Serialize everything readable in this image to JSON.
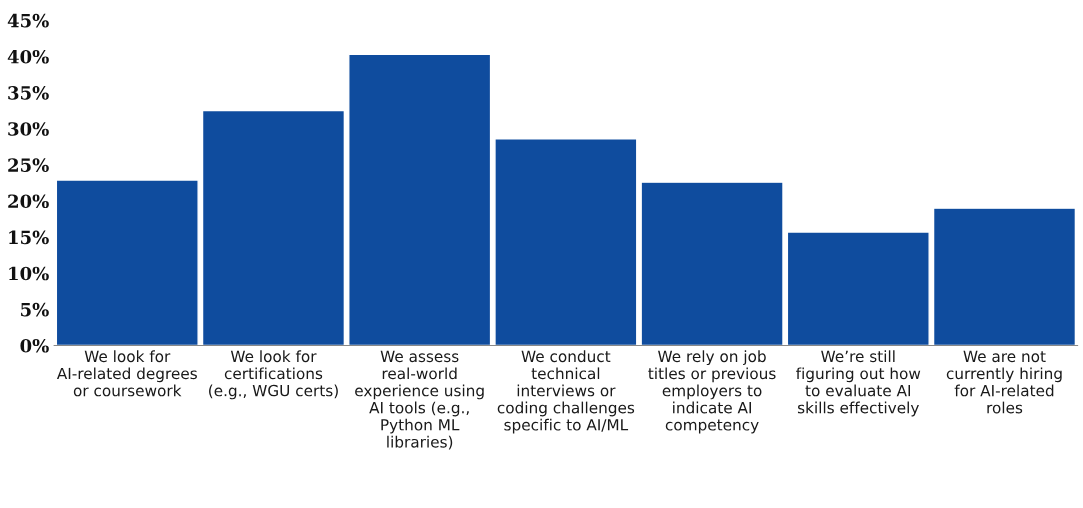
{
  "chart_data": {
    "type": "bar",
    "categories": [
      "We look for AI-related degrees or coursework",
      "We look for certifications (e.g., WGU certs)",
      "We assess real-world experience using AI tools (e.g., Python ML libraries)",
      "We conduct technical interviews or coding challenges specific to AI/ML",
      "We rely on job titles or previous employers to indicate AI competency",
      "We’re still figuring out how to evaluate AI skills effectively",
      "We are not currently hiring for AI-related roles"
    ],
    "values": [
      22.9,
      32.5,
      40.3,
      28.6,
      22.6,
      15.7,
      19.0
    ],
    "color": "#0f4c9e",
    "ylim": [
      0,
      45
    ],
    "yticks": [
      {
        "value": 0,
        "label": "0%"
      },
      {
        "value": 5,
        "label": "5%"
      },
      {
        "value": 10,
        "label": "10%"
      },
      {
        "value": 15,
        "label": "15%"
      },
      {
        "value": 20,
        "label": "20%"
      },
      {
        "value": 25,
        "label": "25%"
      },
      {
        "value": 30,
        "label": "30%"
      },
      {
        "value": 35,
        "label": "35%"
      },
      {
        "value": 40,
        "label": "40%"
      },
      {
        "value": 45,
        "label": "45%"
      }
    ],
    "grid": false
  }
}
